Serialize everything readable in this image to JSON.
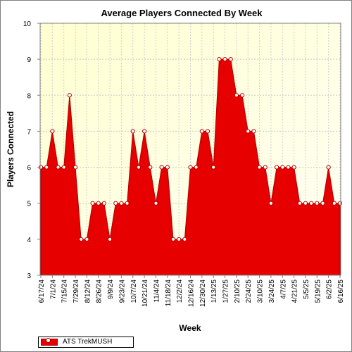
{
  "chart_data": {
    "type": "area",
    "title": "Average Players Connected By Week",
    "xlabel": "Week",
    "ylabel": "Players Connected",
    "ylim": [
      3,
      10
    ],
    "yticks": [
      3,
      4,
      5,
      6,
      7,
      8,
      9,
      10
    ],
    "tick_labels": [
      "6/17/24",
      "7/1/24",
      "7/15/24",
      "7/29/24",
      "8/12/24",
      "8/26/24",
      "9/9/24",
      "9/23/24",
      "10/7/24",
      "10/21/24",
      "11/4/24",
      "11/18/24",
      "12/2/24",
      "12/16/24",
      "12/30/24",
      "1/13/25",
      "1/27/25",
      "2/10/25",
      "2/24/25",
      "3/10/25",
      "3/24/25",
      "4/7/25",
      "4/21/25",
      "5/5/25",
      "5/19/25",
      "6/2/25",
      "6/16/25"
    ],
    "grid": true,
    "legend": "bottom-left",
    "series": [
      {
        "name": "ATS TrekMUSH",
        "color": "#e60000",
        "values": [
          6,
          6,
          7,
          6,
          6,
          8,
          6,
          4,
          4,
          5,
          5,
          5,
          4,
          5,
          5,
          5,
          7,
          6,
          7,
          6,
          5,
          6,
          6,
          4,
          4,
          4,
          6,
          6,
          7,
          7,
          6,
          9,
          9,
          9,
          8,
          8,
          7,
          7,
          6,
          6,
          5,
          6,
          6,
          6,
          6,
          5,
          5,
          5,
          5,
          5,
          6,
          5,
          5
        ]
      }
    ]
  },
  "legend_label": "ATS TrekMUSH"
}
